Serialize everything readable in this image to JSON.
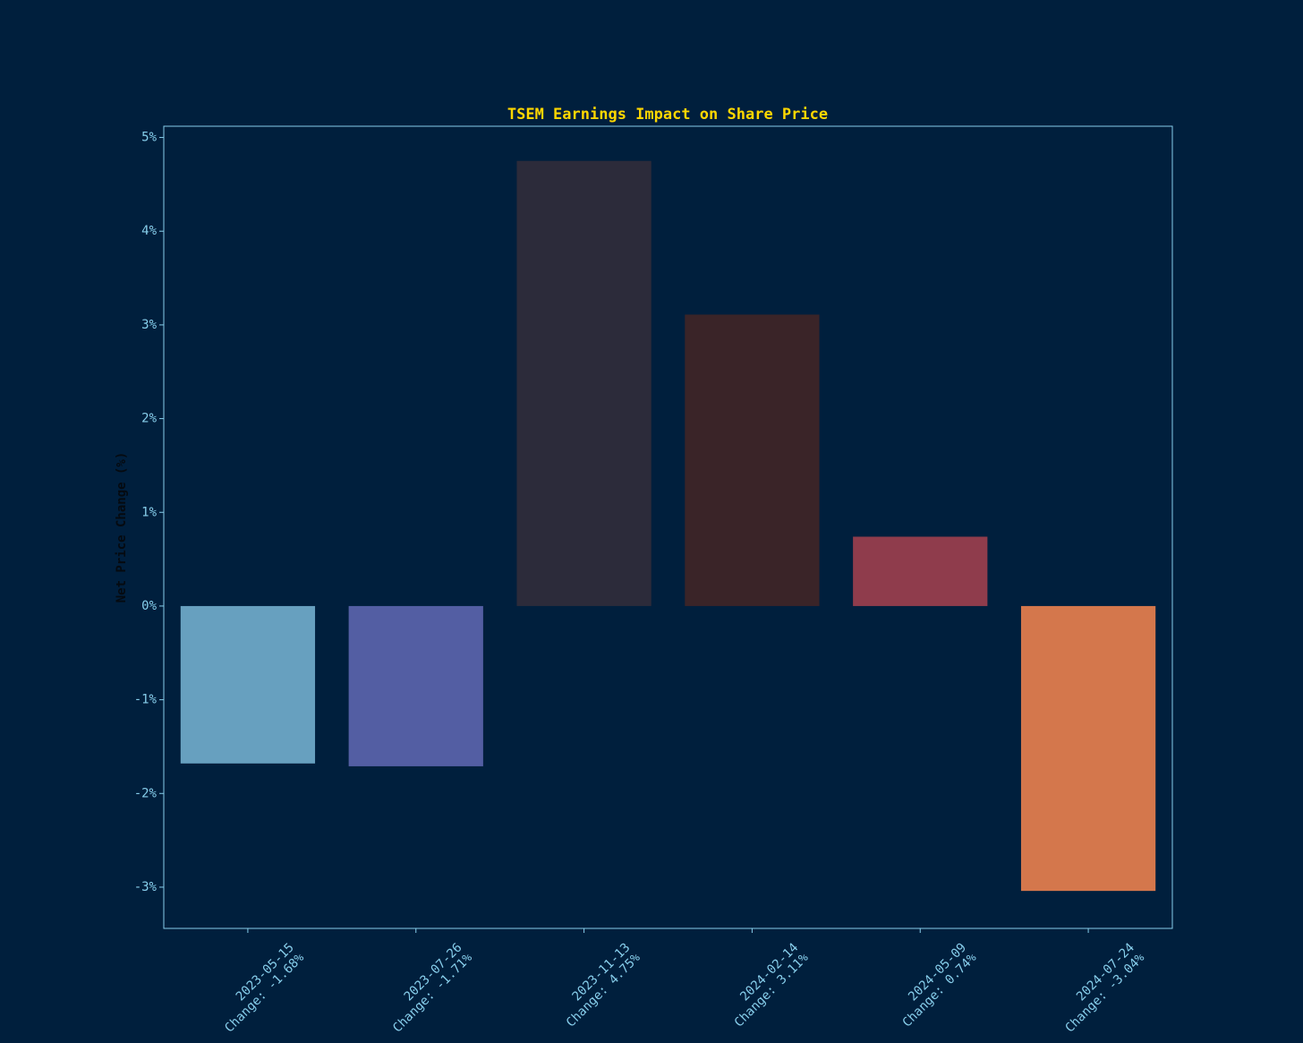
{
  "chart_data": {
    "type": "bar",
    "title": "TSEM Earnings Impact on Share Price",
    "y_label": "Net Price Change (%)",
    "categories": [
      "2023-05-15",
      "2023-07-26",
      "2023-11-13",
      "2024-02-14",
      "2024-05-09",
      "2024-07-24"
    ],
    "values": [
      -1.68,
      -1.71,
      4.75,
      3.11,
      0.74,
      -3.04
    ],
    "value_labels": [
      "Change: -1.68%",
      "Change: -1.71%",
      "Change: 4.75%",
      "Change: 3.11%",
      "Change: 0.74%",
      "Change: -3.04%"
    ],
    "colors": [
      "#67a0bf",
      "#535ea3",
      "#2c2b3a",
      "#3a2428",
      "#8f3c4c",
      "#d4774c"
    ],
    "ylim": [
      -3.44,
      5.12
    ],
    "yticks": [
      {
        "value": -3,
        "label": "-3%"
      },
      {
        "value": -2,
        "label": "-2%"
      },
      {
        "value": -1,
        "label": "-1%"
      },
      {
        "value": 0,
        "label": "0%"
      },
      {
        "value": 1,
        "label": "1%"
      },
      {
        "value": 2,
        "label": "2%"
      },
      {
        "value": 3,
        "label": "3%"
      },
      {
        "value": 4,
        "label": "4%"
      },
      {
        "value": 5,
        "label": "5%"
      }
    ],
    "grid": false
  }
}
